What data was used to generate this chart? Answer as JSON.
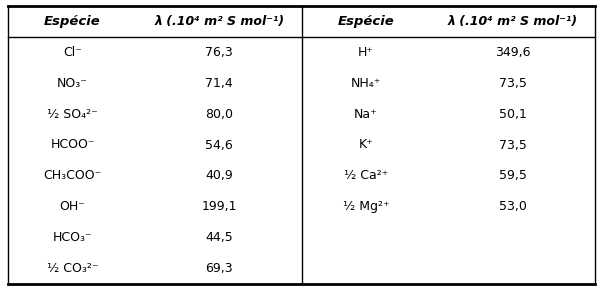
{
  "header_left": [
    "Espécie",
    "λ (.10⁴ m² S mol⁻¹)"
  ],
  "header_right": [
    "Espécie",
    "λ (.10⁴ m² S mol⁻¹)"
  ],
  "rows_left": [
    [
      "Cl⁻",
      "76,3"
    ],
    [
      "NO₃⁻",
      "71,4"
    ],
    [
      "½ SO₄²⁻",
      "80,0"
    ],
    [
      "HCOO⁻",
      "54,6"
    ],
    [
      "CH₃COO⁻",
      "40,9"
    ],
    [
      "OH⁻",
      "199,1"
    ],
    [
      "HCO₃⁻",
      "44,5"
    ],
    [
      "½ CO₃²⁻",
      "69,3"
    ]
  ],
  "rows_right": [
    [
      "H⁺",
      "349,6"
    ],
    [
      "NH₄⁺",
      "73,5"
    ],
    [
      "Na⁺",
      "50,1"
    ],
    [
      "K⁺",
      "73,5"
    ],
    [
      "½ Ca²⁺",
      "59,5"
    ],
    [
      "½ Mg²⁺",
      "53,0"
    ]
  ],
  "bg_color": "#ffffff",
  "text_color": "#000000",
  "line_color": "#000000",
  "font_size": 9.0,
  "header_font_size": 9.5,
  "fig_width": 6.03,
  "fig_height": 2.9,
  "dpi": 100
}
